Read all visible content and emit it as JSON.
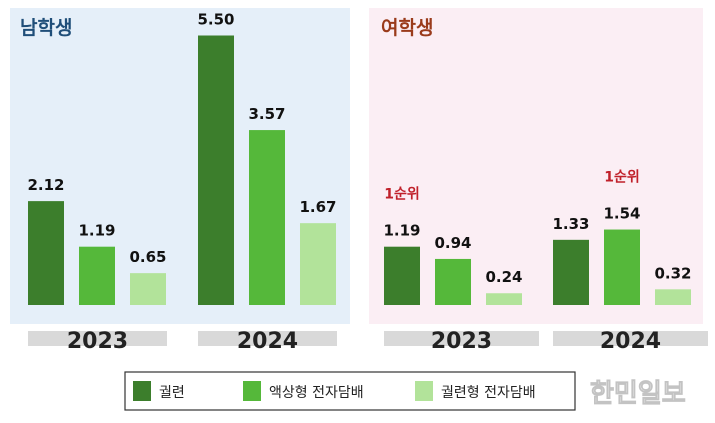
{
  "colors": {
    "cigarette": "#3c7e2c",
    "liquid": "#55b83a",
    "heated": "#b2e39a",
    "male_bg": "#e5eff9",
    "female_bg": "#fbeef4",
    "male_title": "#1f4e79",
    "female_title": "#9a3b1b",
    "rank": "#c0202a"
  },
  "legend": [
    {
      "key": "cigarette",
      "label": "궐련"
    },
    {
      "key": "liquid",
      "label": "액상형 전자담배"
    },
    {
      "key": "heated",
      "label": "궐련형 전자담배"
    }
  ],
  "watermark": "한민일보",
  "chart_data": [
    {
      "type": "bar",
      "title": "남학생",
      "categories": [
        "2023",
        "2024"
      ],
      "series": [
        {
          "name": "궐련",
          "values": [
            2.12,
            5.5
          ],
          "labels": [
            "2.12",
            "5.50"
          ]
        },
        {
          "name": "액상형 전자담배",
          "values": [
            1.19,
            3.57
          ],
          "labels": [
            "1.19",
            "3.57"
          ]
        },
        {
          "name": "궐련형 전자담배",
          "values": [
            0.65,
            1.67
          ],
          "labels": [
            "0.65",
            "1.67"
          ]
        }
      ],
      "annotations": []
    },
    {
      "type": "bar",
      "title": "여학생",
      "categories": [
        "2023",
        "2024"
      ],
      "series": [
        {
          "name": "궐련",
          "values": [
            1.19,
            1.33
          ],
          "labels": [
            "1.19",
            "1.33"
          ]
        },
        {
          "name": "액상형 전자담배",
          "values": [
            0.94,
            1.54
          ],
          "labels": [
            "0.94",
            "1.54"
          ]
        },
        {
          "name": "궐련형 전자담배",
          "values": [
            0.24,
            0.32
          ],
          "labels": [
            "0.24",
            "0.32"
          ]
        }
      ],
      "annotations": [
        {
          "category": "2023",
          "series": "궐련",
          "text": "1순위"
        },
        {
          "category": "2024",
          "series": "액상형 전자담배",
          "text": "1순위"
        }
      ]
    }
  ]
}
